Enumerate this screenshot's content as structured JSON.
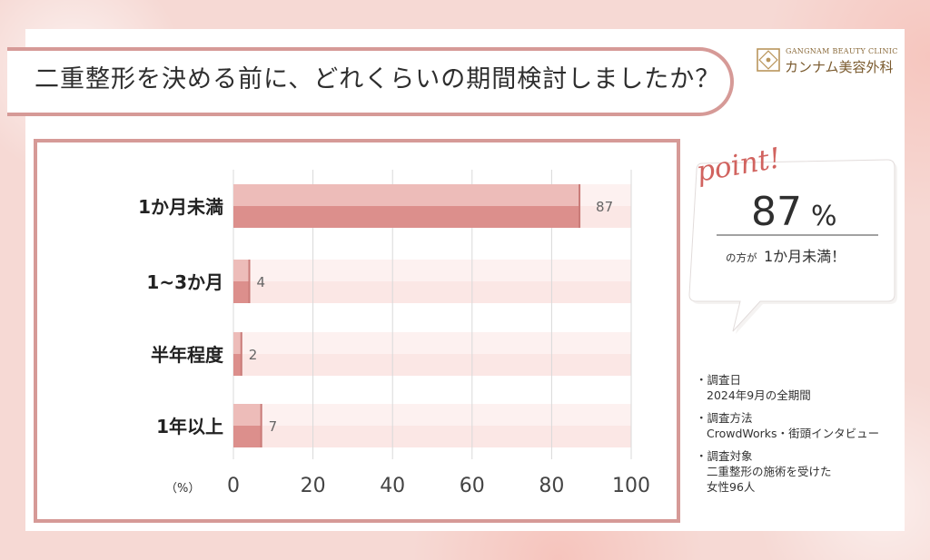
{
  "title": "二重整形を決める前に、どれくらいの期間検討しましたか？",
  "logo": {
    "en": "GANGNAM BEAUTY CLINIC",
    "ja": "カンナム美容外科"
  },
  "point": {
    "label": "point!",
    "value": "87",
    "unit": "%",
    "desc_pre": "の方が",
    "desc_main": "1か月未満！"
  },
  "notes": [
    {
      "head": "・調査日",
      "lines": [
        "2024年9月の全期間"
      ]
    },
    {
      "head": "・調査方法",
      "lines": [
        "CrowdWorks・街頭インタビュー"
      ]
    },
    {
      "head": "・調査対象",
      "lines": [
        "二重整形の施術を受けた",
        "女性96人"
      ]
    }
  ],
  "colors": {
    "accent": "#d69a97",
    "bar_dark": "#dc8f8c",
    "bar_light": "#edbcb9",
    "track": "#fbe7e5",
    "logo_gold": "#b9955b"
  },
  "chart_data": {
    "type": "bar",
    "orientation": "horizontal",
    "categories": [
      "1か月未満",
      "1~3か月",
      "半年程度",
      "1年以上"
    ],
    "values": [
      87,
      4,
      2,
      7
    ],
    "xlim": [
      0,
      100
    ],
    "xticks": [
      0,
      20,
      40,
      60,
      80,
      100
    ],
    "xunit": "（%）",
    "grid": true
  }
}
